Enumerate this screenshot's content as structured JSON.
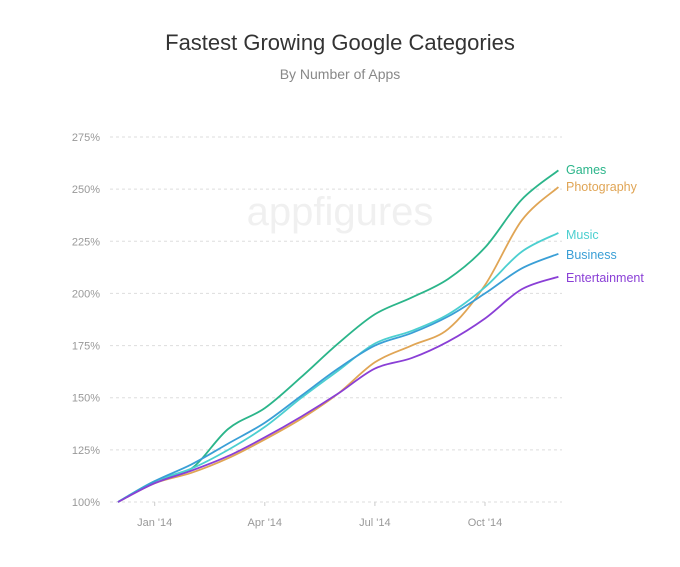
{
  "chart_data": {
    "type": "line",
    "title": "Fastest Growing Google Categories",
    "subtitle": "By Number of Apps",
    "watermark": "appfigures",
    "xlabel": "",
    "ylabel": "",
    "x": [
      "Dec '13",
      "Jan '14",
      "Feb '14",
      "Mar '14",
      "Apr '14",
      "May '14",
      "Jun '14",
      "Jul '14",
      "Aug '14",
      "Sep '14",
      "Oct '14",
      "Nov '14",
      "Dec '14"
    ],
    "x_ticks": [
      {
        "index": 1,
        "label": "Jan '14"
      },
      {
        "index": 4,
        "label": "Apr '14"
      },
      {
        "index": 7,
        "label": "Jul '14"
      },
      {
        "index": 10,
        "label": "Oct '14"
      }
    ],
    "y_ticks": [
      100,
      125,
      150,
      175,
      200,
      225,
      250,
      275
    ],
    "y_tick_labels": [
      "100%",
      "125%",
      "150%",
      "175%",
      "200%",
      "225%",
      "250%",
      "275%"
    ],
    "ylim": [
      100,
      275
    ],
    "grid": true,
    "legend": "inline-right",
    "series": [
      {
        "name": "Games",
        "color": "#2bb58a",
        "values": [
          100,
          110,
          116,
          135,
          145,
          160,
          176,
          190,
          198,
          207,
          222,
          245,
          259
        ]
      },
      {
        "name": "Photography",
        "color": "#e0a555",
        "values": [
          100,
          109,
          114,
          121,
          130,
          140,
          152,
          167,
          175,
          183,
          204,
          235,
          251
        ]
      },
      {
        "name": "Music",
        "color": "#4ccfd0",
        "values": [
          100,
          110,
          116,
          125,
          136,
          150,
          163,
          176,
          182,
          190,
          203,
          220,
          229
        ]
      },
      {
        "name": "Business",
        "color": "#3a9fd6",
        "values": [
          100,
          110,
          118,
          128,
          138,
          151,
          164,
          175,
          181,
          189,
          200,
          212,
          219
        ]
      },
      {
        "name": "Entertainment",
        "color": "#8a3fd6",
        "values": [
          100,
          109,
          115,
          122,
          131,
          141,
          152,
          164,
          169,
          177,
          188,
          202,
          208
        ]
      }
    ]
  }
}
